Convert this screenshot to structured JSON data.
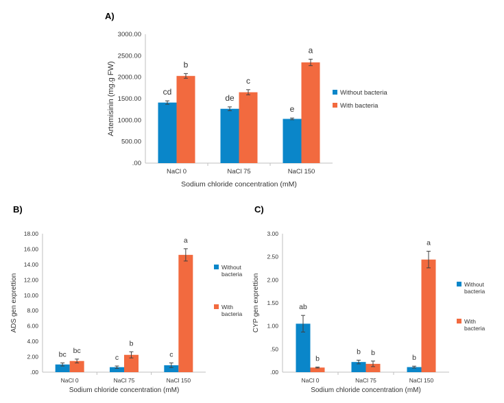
{
  "colors": {
    "series0": "#0a86c9",
    "series1": "#f26a3f",
    "axis": "#bfbfbf",
    "text": "#333333"
  },
  "chart_data": [
    {
      "panel_label": "A)",
      "type": "bar",
      "xlabel": "Sodium chloride concentration (mM)",
      "ylabel": "Artemisinin (mg.g FW)",
      "categories": [
        "NaCl 0",
        "NaCl 75",
        "NaCl 150"
      ],
      "ylim": [
        0,
        3000
      ],
      "yticks": [
        0,
        500,
        1000,
        1500,
        2000,
        2500,
        3000
      ],
      "ytick_labels": [
        ".00",
        "500.00",
        "1000.00",
        "1500.00",
        "2000.00",
        "2500.00",
        "3000.00"
      ],
      "legend": "right",
      "series": [
        {
          "name": "Without bacteria",
          "values": [
            1410,
            1265,
            1030
          ],
          "errors": [
            40,
            45,
            20
          ],
          "labels": [
            "cd",
            "de",
            "e"
          ]
        },
        {
          "name": "With bacteria",
          "values": [
            2030,
            1650,
            2345
          ],
          "errors": [
            55,
            60,
            75
          ],
          "labels": [
            "b",
            "c",
            "a"
          ]
        }
      ]
    },
    {
      "panel_label": "B)",
      "type": "bar",
      "xlabel": "Sodium chloride concentration (mM)",
      "ylabel": "ADS gen exprettion",
      "categories": [
        "NaCl 0",
        "NaCl 75",
        "NaCl 150"
      ],
      "ylim": [
        0,
        18
      ],
      "yticks": [
        0,
        2,
        4,
        6,
        8,
        10,
        12,
        14,
        16,
        18
      ],
      "ytick_labels": [
        ".00",
        "2.00",
        "4.00",
        "6.00",
        "8.00",
        "10.00",
        "12.00",
        "14.00",
        "16.00",
        "18.00"
      ],
      "legend": "right",
      "series": [
        {
          "name": "Without bacteria",
          "values": [
            1.0,
            0.65,
            0.9
          ],
          "errors": [
            0.2,
            0.15,
            0.3
          ],
          "labels": [
            "bc",
            "c",
            "c"
          ]
        },
        {
          "name": "With bacteria",
          "values": [
            1.45,
            2.25,
            15.25
          ],
          "errors": [
            0.25,
            0.4,
            0.8
          ],
          "labels": [
            "bc",
            "b",
            "a"
          ]
        }
      ]
    },
    {
      "panel_label": "C)",
      "type": "bar",
      "xlabel": "Sodium chloride concentration (mM)",
      "ylabel": "CYP gen exprettion",
      "categories": [
        "NaCl 0",
        "NaCl 75",
        "NaCl 150"
      ],
      "ylim": [
        0,
        3
      ],
      "yticks": [
        0,
        0.5,
        1,
        1.5,
        2,
        2.5,
        3
      ],
      "ytick_labels": [
        ".00",
        ".50",
        "1.00",
        "1.50",
        "2.00",
        "2.50",
        "3.00"
      ],
      "legend": "right",
      "series": [
        {
          "name": "Without bacteria",
          "values": [
            1.05,
            0.22,
            0.11
          ],
          "errors": [
            0.18,
            0.04,
            0.02
          ],
          "labels": [
            "ab",
            "b",
            "b"
          ]
        },
        {
          "name": "With bacteria",
          "values": [
            0.1,
            0.18,
            2.44
          ],
          "errors": [
            0.01,
            0.06,
            0.18
          ],
          "labels": [
            "b",
            "b",
            "a"
          ]
        }
      ]
    }
  ]
}
